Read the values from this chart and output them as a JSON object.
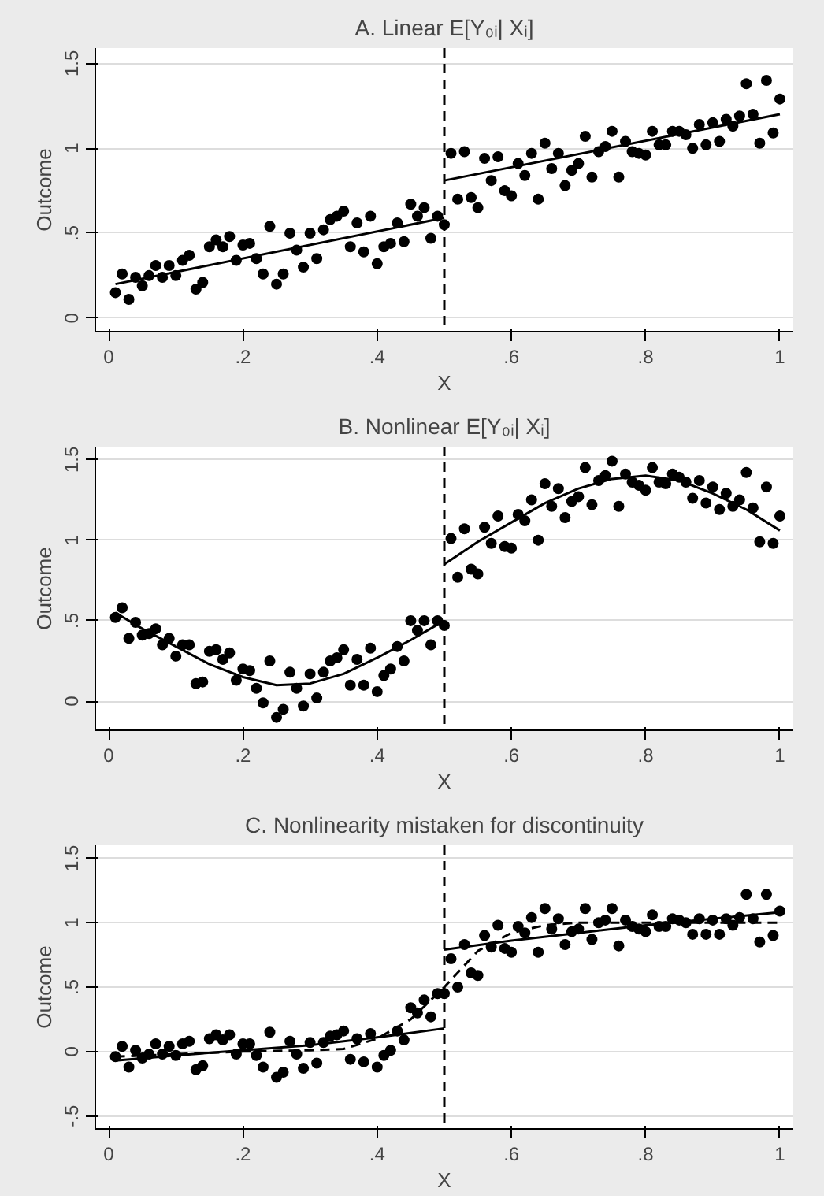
{
  "chart_data": [
    {
      "type": "scatter",
      "title": "A. Linear E[Y₀ᵢ| Xᵢ]",
      "xlabel": "X",
      "ylabel": "Outcome",
      "xlim": [
        -0.02,
        1.02
      ],
      "ylim": [
        -0.08,
        1.59
      ],
      "xticks": [
        {
          "value": 0,
          "label": "0"
        },
        {
          "value": 0.2,
          "label": ".2"
        },
        {
          "value": 0.4,
          "label": ".4"
        },
        {
          "value": 0.6,
          "label": ".6"
        },
        {
          "value": 0.8,
          "label": ".8"
        },
        {
          "value": 1,
          "label": "1"
        }
      ],
      "yticks": [
        {
          "value": 0,
          "label": "0"
        },
        {
          "value": 0.5,
          "label": ".5"
        },
        {
          "value": 1,
          "label": "1"
        },
        {
          "value": 1.5,
          "label": "1.5"
        }
      ],
      "grid": "y",
      "ref_lines": [
        {
          "axis": "x",
          "value": 0.5,
          "line_style": "dashed",
          "color": "#000000"
        }
      ],
      "series": [
        {
          "marker": "circle",
          "color": "#000000",
          "x": [
            0.01,
            0.02,
            0.03,
            0.04,
            0.05,
            0.06,
            0.07,
            0.08,
            0.09,
            0.1,
            0.11,
            0.12,
            0.13,
            0.14,
            0.15,
            0.16,
            0.17,
            0.18,
            0.19,
            0.2,
            0.21,
            0.22,
            0.23,
            0.24,
            0.25,
            0.26,
            0.27,
            0.28,
            0.29,
            0.3,
            0.31,
            0.32,
            0.33,
            0.34,
            0.35,
            0.36,
            0.37,
            0.38,
            0.39,
            0.4,
            0.41,
            0.42,
            0.43,
            0.44,
            0.45,
            0.46,
            0.47,
            0.48,
            0.49,
            0.5,
            0.51,
            0.52,
            0.53,
            0.54,
            0.55,
            0.56,
            0.57,
            0.58,
            0.59,
            0.6,
            0.61,
            0.62,
            0.63,
            0.64,
            0.65,
            0.66,
            0.67,
            0.68,
            0.69,
            0.7,
            0.71,
            0.72,
            0.73,
            0.74,
            0.75,
            0.76,
            0.77,
            0.78,
            0.79,
            0.8,
            0.81,
            0.82,
            0.83,
            0.84,
            0.85,
            0.86,
            0.87,
            0.88,
            0.89,
            0.9,
            0.91,
            0.92,
            0.93,
            0.94,
            0.95,
            0.96,
            0.97,
            0.98,
            0.99,
            1.0
          ],
          "values": [
            0.15,
            0.26,
            0.11,
            0.24,
            0.19,
            0.25,
            0.31,
            0.24,
            0.31,
            0.25,
            0.34,
            0.37,
            0.17,
            0.21,
            0.42,
            0.46,
            0.42,
            0.48,
            0.34,
            0.43,
            0.44,
            0.35,
            0.26,
            0.54,
            0.2,
            0.26,
            0.5,
            0.4,
            0.3,
            0.5,
            0.35,
            0.52,
            0.58,
            0.6,
            0.63,
            0.42,
            0.56,
            0.39,
            0.6,
            0.32,
            0.42,
            0.44,
            0.56,
            0.45,
            0.67,
            0.6,
            0.65,
            0.47,
            0.6,
            0.55,
            0.97,
            0.7,
            0.98,
            0.71,
            0.65,
            0.94,
            0.81,
            0.95,
            0.75,
            0.72,
            0.91,
            0.84,
            0.97,
            0.7,
            1.03,
            0.88,
            0.97,
            0.78,
            0.87,
            0.91,
            1.07,
            0.83,
            0.98,
            1.01,
            1.1,
            0.83,
            1.04,
            0.98,
            0.97,
            0.96,
            1.1,
            1.02,
            1.02,
            1.1,
            1.1,
            1.08,
            1.0,
            1.14,
            1.02,
            1.15,
            1.04,
            1.17,
            1.13,
            1.19,
            1.38,
            1.2,
            1.03,
            1.4,
            1.09,
            1.29
          ]
        },
        {
          "type": "line",
          "line_style": "solid",
          "color": "#000000",
          "x": [
            0.01,
            0.5
          ],
          "values": [
            0.2,
            0.59
          ]
        },
        {
          "type": "line",
          "line_style": "solid",
          "color": "#000000",
          "x": [
            0.5,
            1.0
          ],
          "values": [
            0.81,
            1.2
          ]
        }
      ]
    },
    {
      "type": "scatter",
      "title": "B. Nonlinear E[Y₀ᵢ| Xᵢ]",
      "xlabel": "X",
      "ylabel": "Outcome",
      "xlim": [
        -0.02,
        1.02
      ],
      "ylim": [
        -0.18,
        1.58
      ],
      "xticks": [
        {
          "value": 0,
          "label": "0"
        },
        {
          "value": 0.2,
          "label": ".2"
        },
        {
          "value": 0.4,
          "label": ".4"
        },
        {
          "value": 0.6,
          "label": ".6"
        },
        {
          "value": 0.8,
          "label": ".8"
        },
        {
          "value": 1,
          "label": "1"
        }
      ],
      "yticks": [
        {
          "value": 0,
          "label": "0"
        },
        {
          "value": 0.5,
          "label": ".5"
        },
        {
          "value": 1,
          "label": "1"
        },
        {
          "value": 1.5,
          "label": "1.5"
        }
      ],
      "grid": "y",
      "ref_lines": [
        {
          "axis": "x",
          "value": 0.5,
          "line_style": "dashed",
          "color": "#000000"
        }
      ],
      "series": [
        {
          "marker": "circle",
          "color": "#000000",
          "x": [
            0.01,
            0.02,
            0.03,
            0.04,
            0.05,
            0.06,
            0.07,
            0.08,
            0.09,
            0.1,
            0.11,
            0.12,
            0.13,
            0.14,
            0.15,
            0.16,
            0.17,
            0.18,
            0.19,
            0.2,
            0.21,
            0.22,
            0.23,
            0.24,
            0.25,
            0.26,
            0.27,
            0.28,
            0.29,
            0.3,
            0.31,
            0.32,
            0.33,
            0.34,
            0.35,
            0.36,
            0.37,
            0.38,
            0.39,
            0.4,
            0.41,
            0.42,
            0.43,
            0.44,
            0.45,
            0.46,
            0.47,
            0.48,
            0.49,
            0.5,
            0.51,
            0.52,
            0.53,
            0.54,
            0.55,
            0.56,
            0.57,
            0.58,
            0.59,
            0.6,
            0.61,
            0.62,
            0.63,
            0.64,
            0.65,
            0.66,
            0.67,
            0.68,
            0.69,
            0.7,
            0.71,
            0.72,
            0.73,
            0.74,
            0.75,
            0.76,
            0.77,
            0.78,
            0.79,
            0.8,
            0.81,
            0.82,
            0.83,
            0.84,
            0.85,
            0.86,
            0.87,
            0.88,
            0.89,
            0.9,
            0.91,
            0.92,
            0.93,
            0.94,
            0.95,
            0.96,
            0.97,
            0.98,
            0.99,
            1.0
          ],
          "values": [
            0.52,
            0.58,
            0.39,
            0.49,
            0.41,
            0.42,
            0.45,
            0.35,
            0.39,
            0.28,
            0.35,
            0.35,
            0.11,
            0.12,
            0.31,
            0.32,
            0.26,
            0.3,
            0.13,
            0.2,
            0.19,
            0.08,
            -0.01,
            0.25,
            -0.1,
            -0.05,
            0.18,
            0.08,
            -0.03,
            0.17,
            0.02,
            0.18,
            0.25,
            0.27,
            0.32,
            0.1,
            0.26,
            0.1,
            0.33,
            0.06,
            0.16,
            0.2,
            0.34,
            0.25,
            0.5,
            0.44,
            0.5,
            0.35,
            0.5,
            0.47,
            1.01,
            0.77,
            1.07,
            0.82,
            0.79,
            1.08,
            0.98,
            1.15,
            0.96,
            0.95,
            1.16,
            1.12,
            1.25,
            1.0,
            1.35,
            1.21,
            1.32,
            1.14,
            1.24,
            1.27,
            1.45,
            1.22,
            1.37,
            1.4,
            1.49,
            1.21,
            1.41,
            1.36,
            1.34,
            1.31,
            1.45,
            1.36,
            1.35,
            1.41,
            1.39,
            1.36,
            1.26,
            1.37,
            1.23,
            1.33,
            1.19,
            1.29,
            1.21,
            1.25,
            1.42,
            1.2,
            0.99,
            1.33,
            0.98,
            1.15
          ]
        },
        {
          "type": "line",
          "line_style": "solid",
          "color": "#000000",
          "x": [
            0.01,
            0.05,
            0.1,
            0.15,
            0.2,
            0.25,
            0.3,
            0.35,
            0.4,
            0.45,
            0.5
          ],
          "values": [
            0.55,
            0.45,
            0.34,
            0.23,
            0.15,
            0.1,
            0.11,
            0.17,
            0.27,
            0.38,
            0.5
          ]
        },
        {
          "type": "line",
          "line_style": "solid",
          "color": "#000000",
          "x": [
            0.5,
            0.55,
            0.6,
            0.65,
            0.7,
            0.75,
            0.8,
            0.85,
            0.9,
            0.95,
            1.0
          ],
          "values": [
            0.85,
            0.99,
            1.11,
            1.23,
            1.32,
            1.38,
            1.4,
            1.37,
            1.29,
            1.19,
            1.06
          ]
        }
      ]
    },
    {
      "type": "scatter",
      "title": "C. Nonlinearity mistaken for discontinuity",
      "xlabel": "X",
      "ylabel": "Outcome",
      "xlim": [
        -0.02,
        1.02
      ],
      "ylim": [
        -0.6,
        1.6
      ],
      "xticks": [
        {
          "value": 0,
          "label": "0"
        },
        {
          "value": 0.2,
          "label": ".2"
        },
        {
          "value": 0.4,
          "label": ".4"
        },
        {
          "value": 0.6,
          "label": ".6"
        },
        {
          "value": 0.8,
          "label": ".8"
        },
        {
          "value": 1,
          "label": "1"
        }
      ],
      "yticks": [
        {
          "value": -0.5,
          "label": "-.5"
        },
        {
          "value": 0,
          "label": "0"
        },
        {
          "value": 0.5,
          "label": ".5"
        },
        {
          "value": 1,
          "label": "1"
        },
        {
          "value": 1.5,
          "label": "1.5"
        }
      ],
      "grid": "y",
      "ref_lines": [
        {
          "axis": "x",
          "value": 0.5,
          "line_style": "dashed",
          "color": "#000000"
        }
      ],
      "series": [
        {
          "marker": "circle",
          "color": "#000000",
          "x": [
            0.01,
            0.02,
            0.03,
            0.04,
            0.05,
            0.06,
            0.07,
            0.08,
            0.09,
            0.1,
            0.11,
            0.12,
            0.13,
            0.14,
            0.15,
            0.16,
            0.17,
            0.18,
            0.19,
            0.2,
            0.21,
            0.22,
            0.23,
            0.24,
            0.25,
            0.26,
            0.27,
            0.28,
            0.29,
            0.3,
            0.31,
            0.32,
            0.33,
            0.34,
            0.35,
            0.36,
            0.37,
            0.38,
            0.39,
            0.4,
            0.41,
            0.42,
            0.43,
            0.44,
            0.45,
            0.46,
            0.47,
            0.48,
            0.49,
            0.5,
            0.51,
            0.52,
            0.53,
            0.54,
            0.55,
            0.56,
            0.57,
            0.58,
            0.59,
            0.6,
            0.61,
            0.62,
            0.63,
            0.64,
            0.65,
            0.66,
            0.67,
            0.68,
            0.69,
            0.7,
            0.71,
            0.72,
            0.73,
            0.74,
            0.75,
            0.76,
            0.77,
            0.78,
            0.79,
            0.8,
            0.81,
            0.82,
            0.83,
            0.84,
            0.85,
            0.86,
            0.87,
            0.88,
            0.89,
            0.9,
            0.91,
            0.92,
            0.93,
            0.94,
            0.95,
            0.96,
            0.97,
            0.98,
            0.99,
            1.0
          ],
          "values": [
            -0.04,
            0.04,
            -0.12,
            0.01,
            -0.05,
            -0.02,
            0.06,
            -0.02,
            0.04,
            -0.03,
            0.06,
            0.08,
            -0.14,
            -0.11,
            0.1,
            0.13,
            0.09,
            0.13,
            -0.02,
            0.06,
            0.06,
            -0.03,
            -0.12,
            0.15,
            -0.2,
            -0.16,
            0.08,
            -0.02,
            -0.13,
            0.07,
            -0.09,
            0.07,
            0.12,
            0.13,
            0.16,
            -0.06,
            0.1,
            -0.08,
            0.14,
            -0.12,
            -0.03,
            0.01,
            0.16,
            0.09,
            0.34,
            0.3,
            0.4,
            0.27,
            0.45,
            0.45,
            0.72,
            0.5,
            0.83,
            0.61,
            0.59,
            0.9,
            0.81,
            0.98,
            0.8,
            0.77,
            0.97,
            0.92,
            1.04,
            0.77,
            1.11,
            0.95,
            1.03,
            0.83,
            0.93,
            0.95,
            1.11,
            0.87,
            1.0,
            1.02,
            1.11,
            0.82,
            1.02,
            0.97,
            0.95,
            0.93,
            1.06,
            0.97,
            0.97,
            1.03,
            1.02,
            1.0,
            0.91,
            1.03,
            0.91,
            1.02,
            0.91,
            1.03,
            0.98,
            1.04,
            1.22,
            1.03,
            0.85,
            1.22,
            0.9,
            1.09
          ]
        },
        {
          "type": "line",
          "line_style": "solid",
          "color": "#000000",
          "x": [
            0.01,
            0.1,
            0.2,
            0.3,
            0.4,
            0.5
          ],
          "values": [
            -0.07,
            -0.03,
            0.01,
            0.05,
            0.11,
            0.18
          ]
        },
        {
          "type": "line",
          "line_style": "solid",
          "color": "#000000",
          "x": [
            0.5,
            0.6,
            0.7,
            0.8,
            0.9,
            1.0
          ],
          "values": [
            0.79,
            0.86,
            0.92,
            0.98,
            1.03,
            1.08
          ]
        },
        {
          "type": "line",
          "line_style": "dashed",
          "color": "#000000",
          "x": [
            0.01,
            0.1,
            0.2,
            0.3,
            0.35,
            0.4,
            0.45,
            0.5,
            0.55,
            0.6,
            0.65,
            0.7,
            0.8,
            0.9,
            1.0
          ],
          "values": [
            -0.04,
            -0.02,
            0.0,
            0.01,
            0.02,
            0.1,
            0.25,
            0.5,
            0.78,
            0.92,
            0.98,
            1.0,
            1.0,
            1.0,
            1.0
          ]
        }
      ]
    }
  ]
}
